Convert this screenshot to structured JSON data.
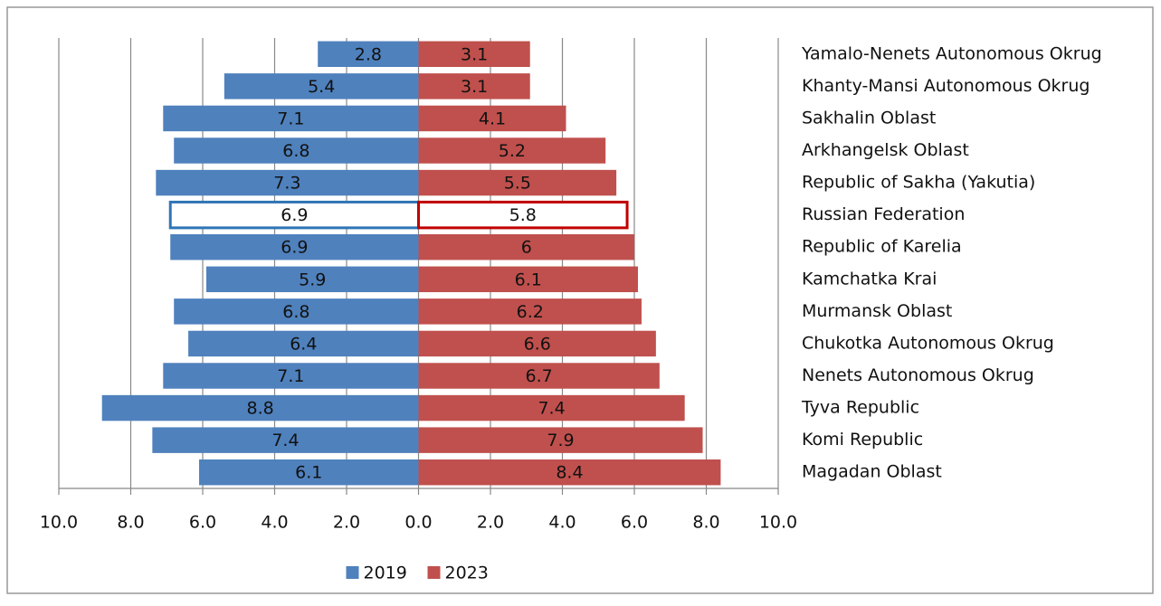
{
  "chart_data": {
    "type": "butterfly_bar",
    "categories": [
      "Yamalo-Nenets Autonomous Okrug",
      "Khanty-Mansi Autonomous Okrug",
      "Sakhalin Oblast",
      "Arkhangelsk Oblast",
      "Republic of Sakha (Yakutia)",
      "Russian Federation",
      "Republic of Karelia",
      "Kamchatka Krai",
      "Murmansk Oblast",
      "Chukotka Autonomous Okrug",
      "Nenets Autonomous Okrug",
      "Tyva Republic",
      "Komi Republic",
      "Magadan Oblast"
    ],
    "series": [
      {
        "name": "2019",
        "color": "#4f81bd",
        "outline_color": "#2e75b6",
        "values": [
          -2.8,
          -5.4,
          -7.1,
          -6.8,
          -7.3,
          -6.9,
          -6.9,
          -5.9,
          -6.8,
          -6.4,
          -7.1,
          -8.8,
          -7.4,
          -6.1
        ],
        "value_labels": [
          "2.8",
          "5.4",
          "7.1",
          "6.8",
          "7.3",
          "6.9",
          "6.9",
          "5.9",
          "6.8",
          "6.4",
          "7.1",
          "8.8",
          "7.4",
          "6.1"
        ]
      },
      {
        "name": "2023",
        "color": "#c0504d",
        "outline_color": "#c00000",
        "values": [
          3.1,
          3.1,
          4.1,
          5.2,
          5.5,
          5.8,
          6,
          6.1,
          6.2,
          6.6,
          6.7,
          7.4,
          7.9,
          8.4
        ]
      }
    ],
    "outlined_categories": [
      "Russian Federation"
    ],
    "xlim": [
      -10,
      10
    ],
    "xticks": [
      {
        "value": -10,
        "label": "10.0"
      },
      {
        "value": -8,
        "label": "8.0"
      },
      {
        "value": -6,
        "label": "6.0"
      },
      {
        "value": -4,
        "label": "4.0"
      },
      {
        "value": -2,
        "label": "2.0"
      },
      {
        "value": 0,
        "label": "0.0"
      },
      {
        "value": 2,
        "label": "2.0"
      },
      {
        "value": 4,
        "label": "4.0"
      },
      {
        "value": 6,
        "label": "6.0"
      },
      {
        "value": 8,
        "label": "8.0"
      },
      {
        "value": 10,
        "label": "10.0"
      }
    ],
    "grid": true,
    "legend": "bottom"
  }
}
